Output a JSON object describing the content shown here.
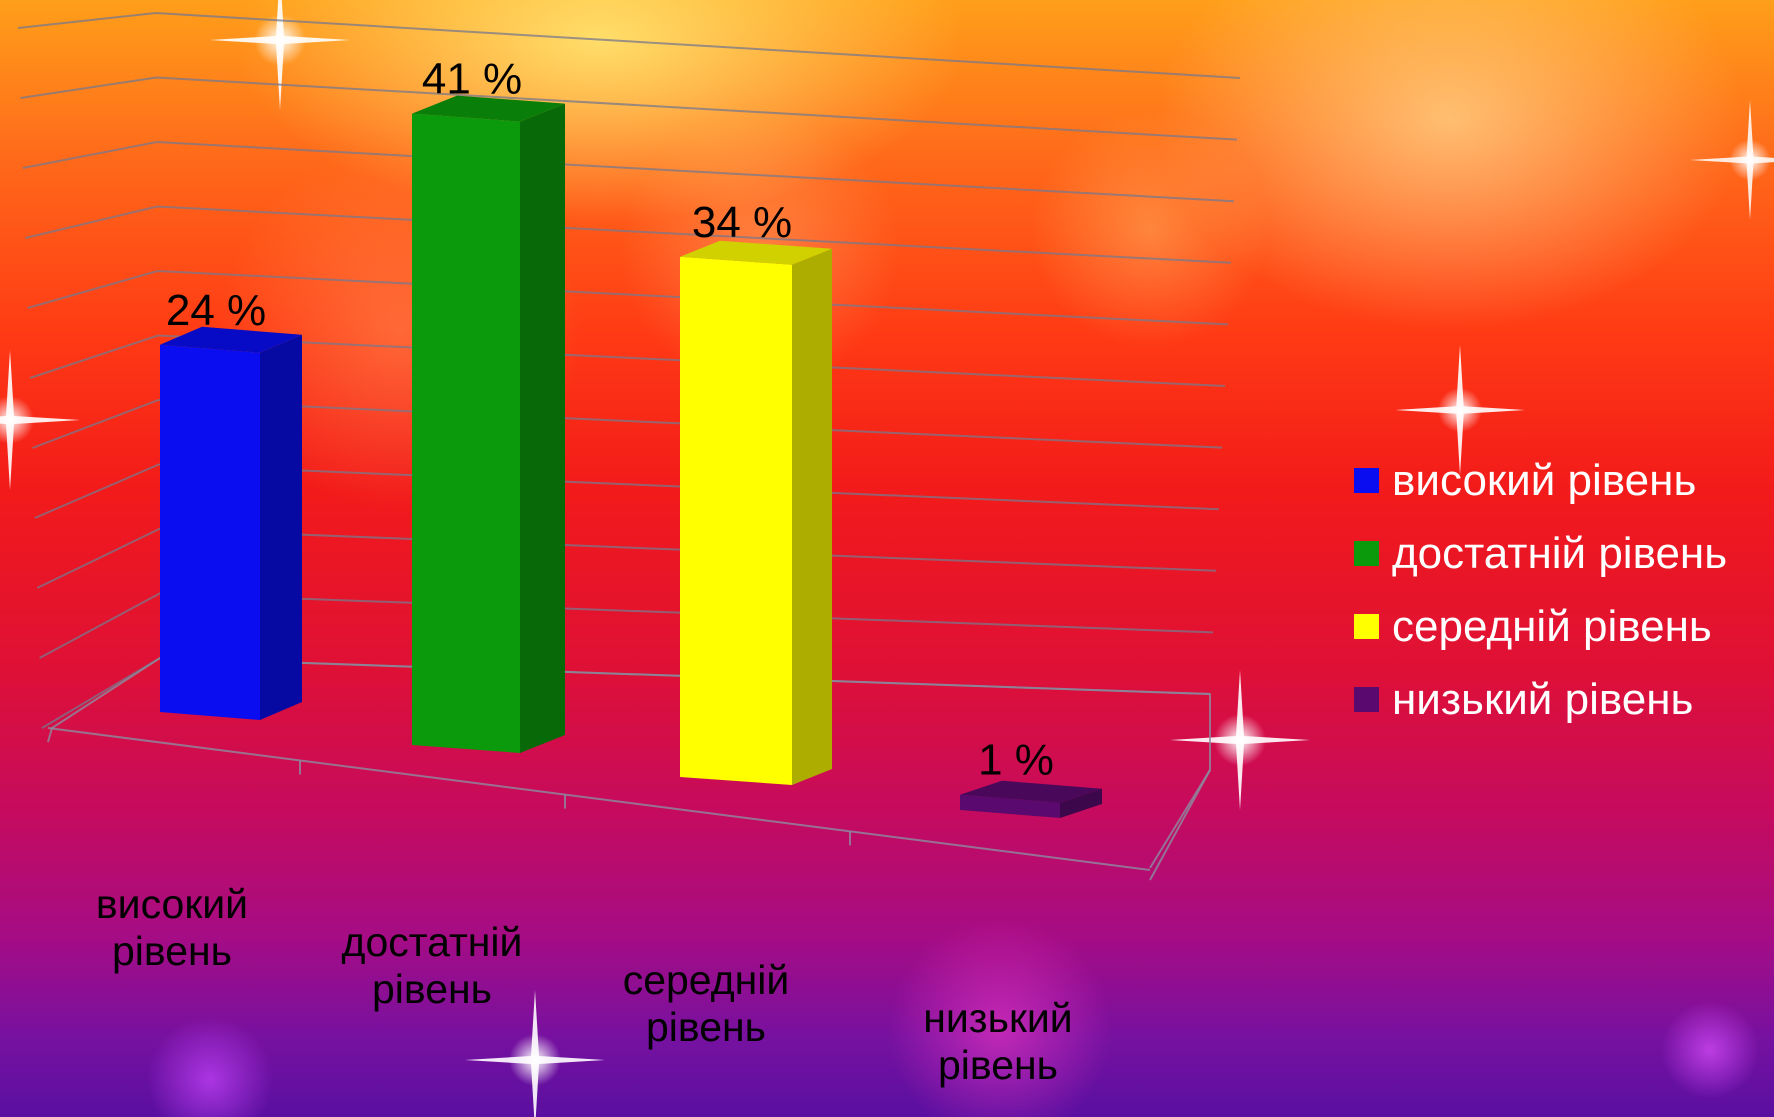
{
  "chart_data": {
    "type": "bar",
    "categories": [
      "високий рівень",
      "достатній рівень",
      "середній рівень",
      "низький рівень"
    ],
    "category_lines": [
      [
        "високий",
        "рівень"
      ],
      [
        "достатній",
        "рівень"
      ],
      [
        "середній",
        "рівень"
      ],
      [
        "низький",
        "рівень"
      ]
    ],
    "values": [
      24,
      41,
      34,
      1
    ],
    "value_labels": [
      "24 %",
      "41 %",
      "34 %",
      "1 %"
    ],
    "colors": [
      "#0a0df0",
      "#0b9a0b",
      "#ffff00",
      "#5a0a6e"
    ],
    "ylim": [
      0,
      45
    ],
    "grid": true,
    "legend_position": "right"
  },
  "legend": {
    "items": [
      {
        "label": "високий рівень",
        "color": "#0a0df0"
      },
      {
        "label": "достатній рівень",
        "color": "#0b9a0b"
      },
      {
        "label": "середній рівень",
        "color": "#ffff00"
      },
      {
        "label": "низький рівень",
        "color": "#5a0a6e"
      }
    ]
  }
}
